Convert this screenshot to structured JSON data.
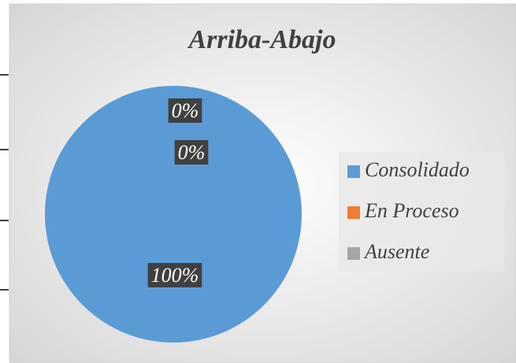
{
  "chart_data": {
    "type": "pie",
    "title": "Arriba-Abajo",
    "categories": [
      "Consolidado",
      "En Proceso",
      "Ausente"
    ],
    "values": [
      100,
      0,
      0
    ],
    "value_labels": [
      "100%",
      "0%",
      "0%"
    ],
    "colors": [
      "#5b9bd5",
      "#ed7d31",
      "#a5a5a5"
    ],
    "legend": "right"
  }
}
